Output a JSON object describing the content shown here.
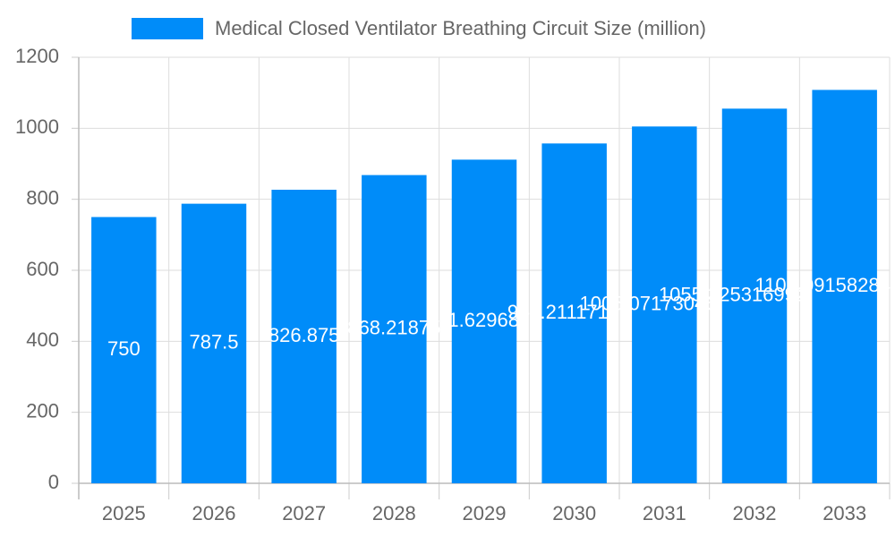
{
  "chart_data": {
    "type": "bar",
    "series": [
      {
        "name": "Medical Closed Ventilator Breathing Circuit Size (million)",
        "color": "#008cf9",
        "values": [
          750,
          787.5,
          826.875,
          868.21875,
          911.6296875,
          957.211171875,
          1005.07173046875,
          1055.3253169921875,
          1108.091582841797
        ]
      }
    ],
    "categories": [
      "2025",
      "2026",
      "2027",
      "2028",
      "2029",
      "2030",
      "2031",
      "2032",
      "2033"
    ],
    "ylim": [
      0,
      1200
    ],
    "yticks": [
      0,
      200,
      400,
      600,
      800,
      1000,
      1200
    ],
    "grid": true
  }
}
